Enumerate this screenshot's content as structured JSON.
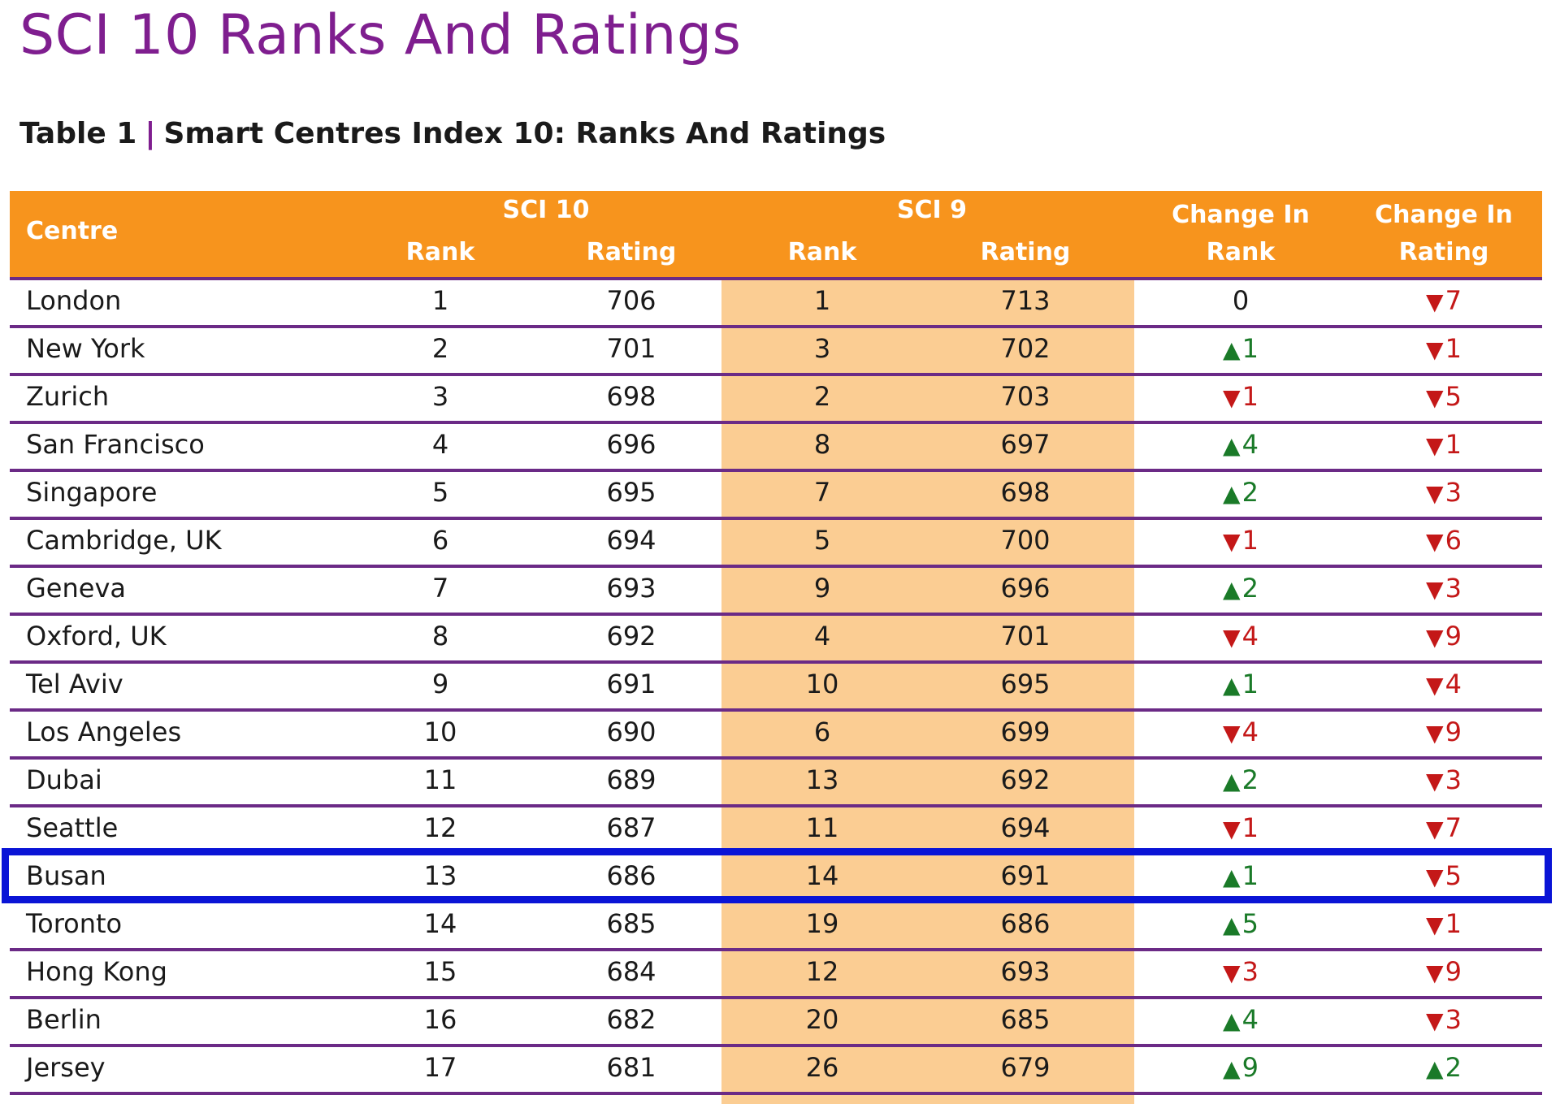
{
  "page": {
    "title": "SCI 10 Ranks And Ratings"
  },
  "caption": {
    "label": "Table 1",
    "separator": "|",
    "title": "Smart Centres Index 10: Ranks And Ratings"
  },
  "table": {
    "header": {
      "centre": "Centre",
      "sci10": "SCI 10",
      "sci9": "SCI 9",
      "rank": "Rank",
      "rating": "Rating",
      "change_rank_line1": "Change In",
      "change_rank_line2": "Rank",
      "change_rating_line1": "Change In",
      "change_rating_line2": "Rating"
    },
    "highlighted_row": "Busan",
    "rows": [
      {
        "centre": "London",
        "sci10_rank": "1",
        "sci10_rating": "706",
        "sci9_rank": "1",
        "sci9_rating": "713",
        "change_rank": {
          "dir": "none",
          "value": "0"
        },
        "change_rating": {
          "dir": "down",
          "value": "7"
        }
      },
      {
        "centre": "New York",
        "sci10_rank": "2",
        "sci10_rating": "701",
        "sci9_rank": "3",
        "sci9_rating": "702",
        "change_rank": {
          "dir": "up",
          "value": "1"
        },
        "change_rating": {
          "dir": "down",
          "value": "1"
        }
      },
      {
        "centre": "Zurich",
        "sci10_rank": "3",
        "sci10_rating": "698",
        "sci9_rank": "2",
        "sci9_rating": "703",
        "change_rank": {
          "dir": "down",
          "value": "1"
        },
        "change_rating": {
          "dir": "down",
          "value": "5"
        }
      },
      {
        "centre": "San Francisco",
        "sci10_rank": "4",
        "sci10_rating": "696",
        "sci9_rank": "8",
        "sci9_rating": "697",
        "change_rank": {
          "dir": "up",
          "value": "4"
        },
        "change_rating": {
          "dir": "down",
          "value": "1"
        }
      },
      {
        "centre": "Singapore",
        "sci10_rank": "5",
        "sci10_rating": "695",
        "sci9_rank": "7",
        "sci9_rating": "698",
        "change_rank": {
          "dir": "up",
          "value": "2"
        },
        "change_rating": {
          "dir": "down",
          "value": "3"
        }
      },
      {
        "centre": "Cambridge, UK",
        "sci10_rank": "6",
        "sci10_rating": "694",
        "sci9_rank": "5",
        "sci9_rating": "700",
        "change_rank": {
          "dir": "down",
          "value": "1"
        },
        "change_rating": {
          "dir": "down",
          "value": "6"
        }
      },
      {
        "centre": "Geneva",
        "sci10_rank": "7",
        "sci10_rating": "693",
        "sci9_rank": "9",
        "sci9_rating": "696",
        "change_rank": {
          "dir": "up",
          "value": "2"
        },
        "change_rating": {
          "dir": "down",
          "value": "3"
        }
      },
      {
        "centre": "Oxford, UK",
        "sci10_rank": "8",
        "sci10_rating": "692",
        "sci9_rank": "4",
        "sci9_rating": "701",
        "change_rank": {
          "dir": "down",
          "value": "4"
        },
        "change_rating": {
          "dir": "down",
          "value": "9"
        }
      },
      {
        "centre": "Tel Aviv",
        "sci10_rank": "9",
        "sci10_rating": "691",
        "sci9_rank": "10",
        "sci9_rating": "695",
        "change_rank": {
          "dir": "up",
          "value": "1"
        },
        "change_rating": {
          "dir": "down",
          "value": "4"
        }
      },
      {
        "centre": "Los Angeles",
        "sci10_rank": "10",
        "sci10_rating": "690",
        "sci9_rank": "6",
        "sci9_rating": "699",
        "change_rank": {
          "dir": "down",
          "value": "4"
        },
        "change_rating": {
          "dir": "down",
          "value": "9"
        }
      },
      {
        "centre": "Dubai",
        "sci10_rank": "11",
        "sci10_rating": "689",
        "sci9_rank": "13",
        "sci9_rating": "692",
        "change_rank": {
          "dir": "up",
          "value": "2"
        },
        "change_rating": {
          "dir": "down",
          "value": "3"
        }
      },
      {
        "centre": "Seattle",
        "sci10_rank": "12",
        "sci10_rating": "687",
        "sci9_rank": "11",
        "sci9_rating": "694",
        "change_rank": {
          "dir": "down",
          "value": "1"
        },
        "change_rating": {
          "dir": "down",
          "value": "7"
        }
      },
      {
        "centre": "Busan",
        "sci10_rank": "13",
        "sci10_rating": "686",
        "sci9_rank": "14",
        "sci9_rating": "691",
        "change_rank": {
          "dir": "up",
          "value": "1"
        },
        "change_rating": {
          "dir": "down",
          "value": "5"
        }
      },
      {
        "centre": "Toronto",
        "sci10_rank": "14",
        "sci10_rating": "685",
        "sci9_rank": "19",
        "sci9_rating": "686",
        "change_rank": {
          "dir": "up",
          "value": "5"
        },
        "change_rating": {
          "dir": "down",
          "value": "1"
        }
      },
      {
        "centre": "Hong Kong",
        "sci10_rank": "15",
        "sci10_rating": "684",
        "sci9_rank": "12",
        "sci9_rating": "693",
        "change_rank": {
          "dir": "down",
          "value": "3"
        },
        "change_rating": {
          "dir": "down",
          "value": "9"
        }
      },
      {
        "centre": "Berlin",
        "sci10_rank": "16",
        "sci10_rating": "682",
        "sci9_rank": "20",
        "sci9_rating": "685",
        "change_rank": {
          "dir": "up",
          "value": "4"
        },
        "change_rating": {
          "dir": "down",
          "value": "3"
        }
      },
      {
        "centre": "Jersey",
        "sci10_rank": "17",
        "sci10_rating": "681",
        "sci9_rank": "26",
        "sci9_rating": "679",
        "change_rank": {
          "dir": "up",
          "value": "9"
        },
        "change_rating": {
          "dir": "up",
          "value": "2"
        }
      }
    ]
  },
  "colors": {
    "title": "#7f1e8f",
    "header_bg": "#f7941d",
    "sci9_band": "#fbcd93",
    "row_rule": "#6b2a86",
    "up": "#1a7a28",
    "down": "#c41818",
    "highlight_border": "#0a14d6"
  },
  "icons": {
    "up": "triangle-up-icon",
    "down": "triangle-down-icon"
  }
}
